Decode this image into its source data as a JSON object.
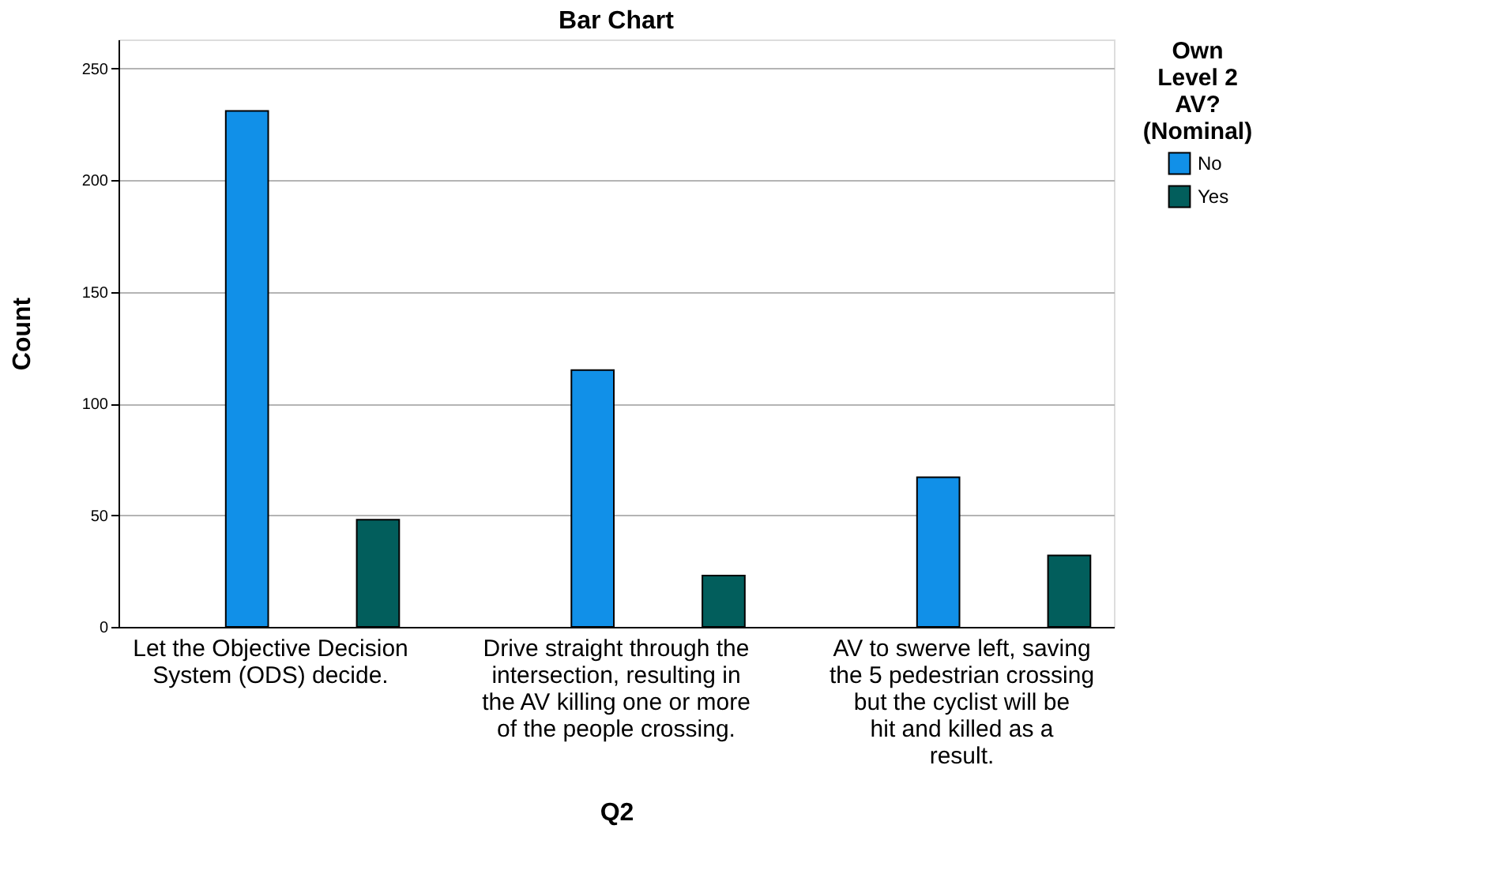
{
  "chart_data": {
    "type": "bar",
    "title": "Bar Chart",
    "xlabel": "Q2",
    "ylabel": "Count",
    "legend_title": "Own Level 2 AV? (Nominal)",
    "categories": [
      "Let the Objective Decision System (ODS) decide.",
      "Drive straight through the intersection, resulting in the AV killing one or more of the people crossing.",
      "AV to swerve left, saving the 5 pedestrian crossing but the cyclist will be hit and killed as a result."
    ],
    "series": [
      {
        "name": "No",
        "color": "#1190e8",
        "values": [
          231,
          115,
          67
        ]
      },
      {
        "name": "Yes",
        "color": "#025e5c",
        "values": [
          48,
          23,
          32
        ]
      }
    ],
    "ylim": [
      0,
      263
    ],
    "yticks": [
      0,
      50,
      100,
      150,
      200,
      250
    ],
    "grid": "y",
    "legend": "top right"
  }
}
